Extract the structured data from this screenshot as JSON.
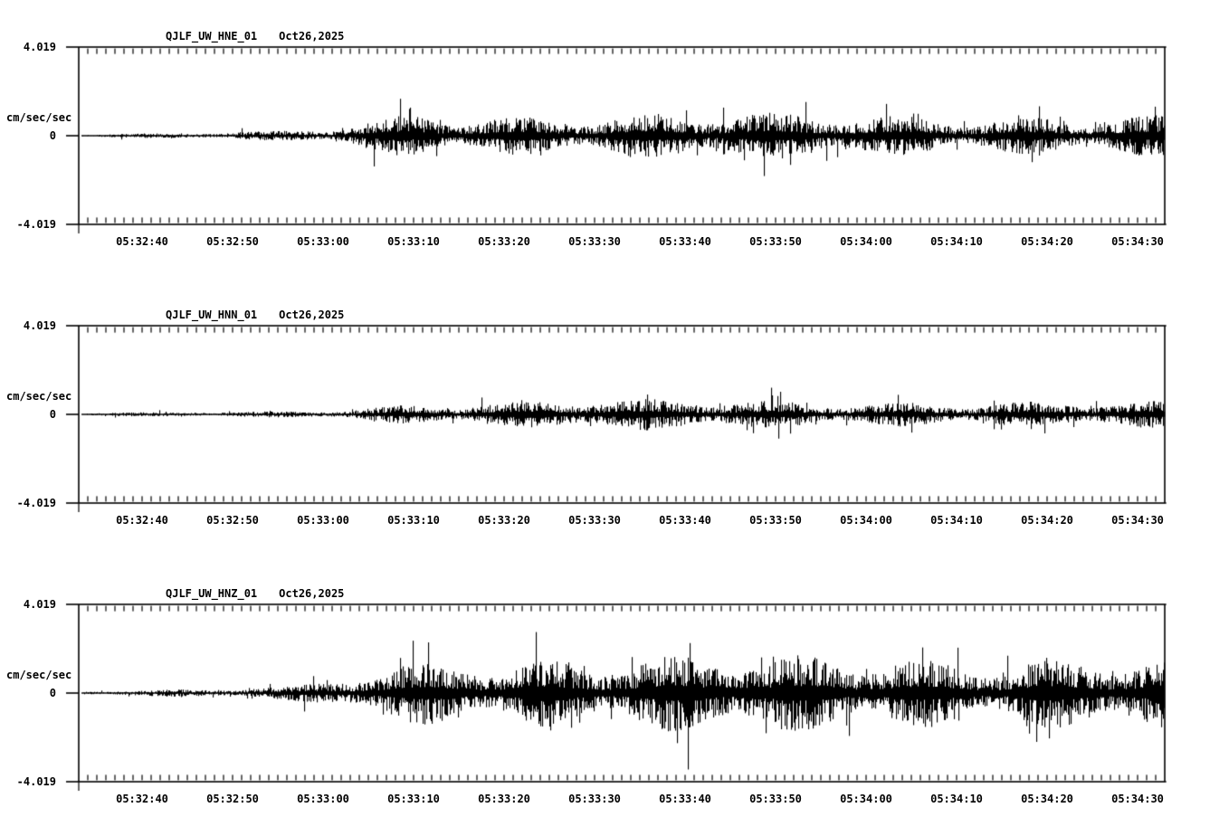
{
  "figure": {
    "background": "#ffffff",
    "ink": "#000000"
  },
  "panels": [
    {
      "station": "QJLF_UW_HNE_01",
      "date": "Oct26,2025",
      "y_max": "4.019",
      "y_zero": "0",
      "y_min": "-4.019",
      "y_unit": "cm/sec/sec"
    },
    {
      "station": "QJLF_UW_HNN_01",
      "date": "Oct26,2025",
      "y_max": "4.019",
      "y_zero": "0",
      "y_min": "-4.019",
      "y_unit": "cm/sec/sec"
    },
    {
      "station": "QJLF_UW_HNZ_01",
      "date": "Oct26,2025",
      "y_max": "4.019",
      "y_zero": "0",
      "y_min": "-4.019",
      "y_unit": "cm/sec/sec"
    }
  ],
  "x_axis": {
    "labels": [
      "05:32:40",
      "05:32:50",
      "05:33:00",
      "05:33:10",
      "05:33:20",
      "05:33:30",
      "05:33:40",
      "05:33:50",
      "05:34:00",
      "05:34:10",
      "05:34:20",
      "05:34:30"
    ]
  },
  "chart_data": {
    "type": "line",
    "subtype": "seismogram",
    "x_axis": {
      "start_time": "05:32:33",
      "end_time": "05:34:33",
      "duration_s": 120,
      "minor_tick_s": 1,
      "major_tick_s": 10,
      "tick_labels": [
        "05:32:40",
        "05:32:50",
        "05:33:00",
        "05:33:10",
        "05:33:20",
        "05:33:30",
        "05:33:40",
        "05:33:50",
        "05:34:00",
        "05:34:10",
        "05:34:20",
        "05:34:30"
      ]
    },
    "y_axis": {
      "units": "cm/sec/sec",
      "limits": [
        -4.019,
        4.019
      ],
      "tick_values": [
        4.019,
        0,
        -4.019
      ]
    },
    "series": [
      {
        "name": "QJLF_UW_HNE_01",
        "date": "Oct26,2025",
        "seed": 101,
        "envelope_t_s": [
          0,
          8,
          16,
          24,
          28,
          31,
          34,
          38,
          44,
          52,
          62,
          75,
          90,
          105,
          118,
          120
        ],
        "envelope_amp": [
          0.07,
          0.09,
          0.13,
          0.2,
          0.3,
          0.55,
          0.8,
          0.95,
          0.9,
          0.85,
          0.9,
          0.85,
          0.8,
          0.82,
          0.85,
          0.85
        ]
      },
      {
        "name": "QJLF_UW_HNN_01",
        "date": "Oct26,2025",
        "seed": 202,
        "envelope_t_s": [
          0,
          10,
          20,
          26,
          31,
          36,
          42,
          50,
          60,
          72,
          85,
          100,
          110,
          120
        ],
        "envelope_amp": [
          0.06,
          0.08,
          0.11,
          0.16,
          0.28,
          0.42,
          0.55,
          0.62,
          0.58,
          0.55,
          0.52,
          0.55,
          0.52,
          0.5
        ]
      },
      {
        "name": "QJLF_UW_HNZ_01",
        "date": "Oct26,2025",
        "seed": 303,
        "envelope_t_s": [
          0,
          8,
          16,
          23,
          27,
          31,
          35,
          40,
          47,
          55,
          65,
          75,
          85,
          95,
          105,
          113,
          120
        ],
        "envelope_amp": [
          0.09,
          0.12,
          0.16,
          0.25,
          0.45,
          0.85,
          1.2,
          1.45,
          1.5,
          1.4,
          1.45,
          1.35,
          1.45,
          1.5,
          1.55,
          1.6,
          1.55
        ]
      }
    ],
    "envelope_note": "amplitude envelope of high-frequency ground-acceleration trace, in cm/sec/sec"
  }
}
